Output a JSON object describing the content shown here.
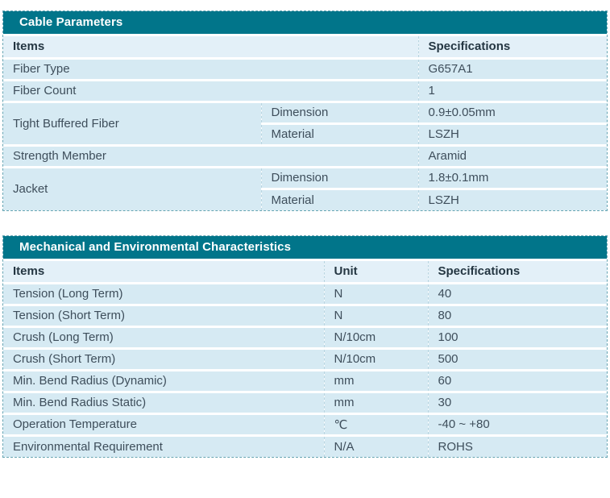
{
  "colors": {
    "title_bar_bg": "#01758a",
    "title_text": "#ffffff",
    "header_row_bg": "#e3f0f8",
    "row_bg": "#d6eaf3",
    "header_text": "#243642",
    "body_text": "#3e4e5b",
    "outer_border_dashed": "#67a5b3",
    "column_divider_dashed": "#b9d5e0",
    "row_divider": "#ffffff"
  },
  "cable_table": {
    "title": "Cable Parameters",
    "headers": {
      "items": "Items",
      "specifications": "Specifications"
    },
    "rows": [
      {
        "item": "Fiber Type",
        "spec": "G657A1"
      },
      {
        "item": "Fiber Count",
        "spec": "1"
      },
      {
        "item": "Tight Buffered Fiber",
        "subrows": [
          {
            "name": "Dimension",
            "spec": "0.9±0.05mm"
          },
          {
            "name": "Material",
            "spec": "LSZH"
          }
        ]
      },
      {
        "item": "Strength Member",
        "spec": "Aramid"
      },
      {
        "item": "Jacket",
        "subrows": [
          {
            "name": "Dimension",
            "spec": "1.8±0.1mm"
          },
          {
            "name": "Material",
            "spec": "LSZH"
          }
        ]
      }
    ]
  },
  "mech_table": {
    "title": "Mechanical and Environmental Characteristics",
    "headers": {
      "items": "Items",
      "unit": "Unit",
      "specifications": "Specifications"
    },
    "rows": [
      {
        "item": "Tension (Long Term)",
        "unit": "N",
        "spec": "40"
      },
      {
        "item": "Tension (Short Term)",
        "unit": "N",
        "spec": "80"
      },
      {
        "item": "Crush (Long Term)",
        "unit": "N/10cm",
        "spec": "100"
      },
      {
        "item": "Crush (Short Term)",
        "unit": "N/10cm",
        "spec": "500"
      },
      {
        "item": "Min. Bend Radius (Dynamic)",
        "unit": "mm",
        "spec": "60"
      },
      {
        "item": "Min. Bend Radius Static)",
        "unit": "mm",
        "spec": "30"
      },
      {
        "item": "Operation Temperature",
        "unit": "℃",
        "spec": "-40 ~ +80"
      },
      {
        "item": "Environmental Requirement",
        "unit": "N/A",
        "spec": "ROHS"
      }
    ]
  }
}
